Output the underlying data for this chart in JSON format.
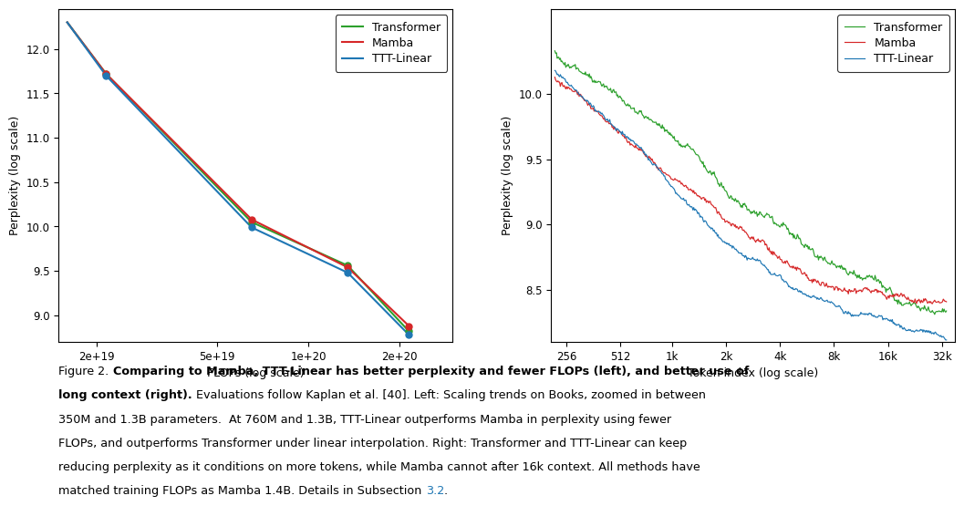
{
  "left_plot": {
    "xlabel": "FLOPs (log scale)",
    "ylabel": "Perplexity (log scale)",
    "xlim": [
      1.5e+19,
      3e+20
    ],
    "ylim": [
      8.7,
      12.45
    ],
    "xticks": [
      2e+19,
      5e+19,
      1e+20,
      2e+20
    ],
    "xtick_labels": [
      "2e+19",
      "5e+19",
      "1e+20",
      "2e+20"
    ],
    "yticks": [
      9.0,
      9.5,
      10.0,
      10.5,
      11.0,
      11.5,
      12.0
    ],
    "transformer_points": [
      [
        1.6e+19,
        12.3
      ],
      [
        2.15e+19,
        11.72
      ],
      [
        6.5e+19,
        10.05
      ],
      [
        1.35e+20,
        9.56
      ],
      [
        2.15e+20,
        8.82
      ]
    ],
    "mamba_points": [
      [
        1.6e+19,
        12.3
      ],
      [
        2.15e+19,
        11.72
      ],
      [
        6.5e+19,
        10.08
      ],
      [
        1.35e+20,
        9.54
      ],
      [
        2.15e+20,
        8.88
      ]
    ],
    "ttt_points": [
      [
        1.6e+19,
        12.3
      ],
      [
        2.15e+19,
        11.7
      ],
      [
        6.5e+19,
        9.99
      ],
      [
        1.35e+20,
        9.48
      ],
      [
        2.15e+20,
        8.78
      ]
    ],
    "dot_indices": [
      1,
      2,
      3,
      4
    ],
    "dot_size": 25
  },
  "right_plot": {
    "xlabel": "Token index (log scale)",
    "ylabel": "Perplexity (log scale)",
    "xlim": [
      210,
      38000
    ],
    "ylim": [
      8.1,
      10.65
    ],
    "xticks": [
      256,
      512,
      1000,
      2000,
      4000,
      8000,
      16000,
      32000
    ],
    "xtick_labels": [
      "256",
      "512",
      "1k",
      "2k",
      "4k",
      "8k",
      "16k",
      "32k"
    ],
    "yticks": [
      8.5,
      9.0,
      9.5,
      10.0
    ]
  },
  "transformer_color": "#2ca02c",
  "mamba_color": "#d62728",
  "ttt_color": "#1f77b4",
  "legend_labels": [
    "Transformer",
    "Mamba",
    "TTT-Linear"
  ],
  "caption_line1_normal": "Figure 2. ",
  "caption_line1_bold": "Comparing to Mamba, TTT-Linear has better perplexity and fewer FLOPs (left), and better use of",
  "caption_line2_bold": "long context (right).",
  "caption_line2_normal": " Evaluations follow Kaplan et al. [40]. Left: Scaling trends on Books, zoomed in between",
  "caption_line3": "350M and 1.3B parameters.  At 760M and 1.3B, TTT-Linear outperforms Mamba in perplexity using fewer",
  "caption_line4": "FLOPs, and outperforms Transformer under linear interpolation. Right: Transformer and TTT-Linear can keep",
  "caption_line5": "reducing perplexity as it conditions on more tokens, while Mamba cannot after 16k context. All methods have",
  "caption_line6": "matched training FLOPs as Mamba 1.4B. Details in Subsection 3.2.",
  "background_color": "#ffffff"
}
